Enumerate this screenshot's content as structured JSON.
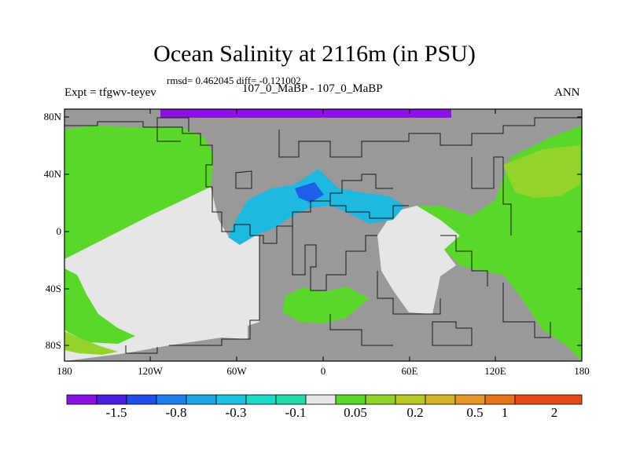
{
  "title": "Ocean Salinity at 2116m (in PSU)",
  "stats": "rmsd= 0.462045 diff= -0.121002",
  "experiment": "Expt = tfgwv-teyev",
  "subtitle": "107_0_MaBP - 107_0_MaBP",
  "season": "ANN",
  "axes": {
    "lat_labels": [
      "80N",
      "40N",
      "0",
      "40S",
      "80S"
    ],
    "lon_labels": [
      "180",
      "120W",
      "60W",
      "0",
      "60E",
      "120E",
      "180"
    ]
  },
  "colorbar": {
    "colors": [
      "#8a13e0",
      "#4c1ee0",
      "#1f4ee8",
      "#1f7ee8",
      "#1fa6e6",
      "#1ec2e0",
      "#1fd8c8",
      "#22dca8",
      "#e6e6e6",
      "#58d82a",
      "#8ed22a",
      "#b8c82a",
      "#d2b42a",
      "#e49628",
      "#e6721e",
      "#e44a1a"
    ],
    "labels": [
      "-1.5",
      "-0.8",
      "-0.3",
      "-0.1",
      "0.05",
      "0.2",
      "0.5",
      "1",
      "2"
    ]
  },
  "colors": {
    "land": "#999999",
    "near_zero": "#e6e6e6",
    "positive": "#5ad82a",
    "positive_high": "#94d42a",
    "arctic": "#8a13e0",
    "tethys": "#1fb8e0",
    "tethys_dark": "#1f5ee8"
  }
}
